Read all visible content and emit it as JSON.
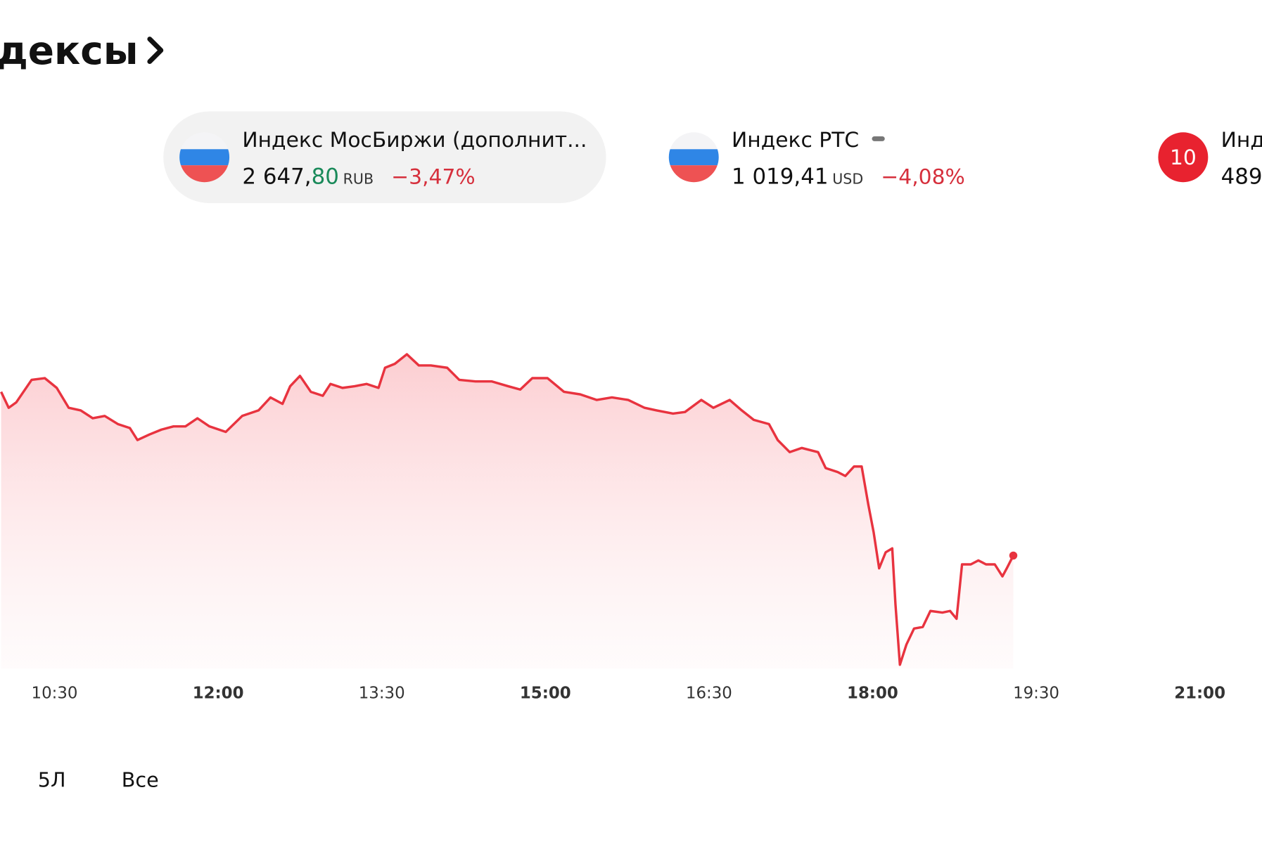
{
  "header": {
    "title": "дексы"
  },
  "cards": [
    {
      "name": "Индекс МосБиржи (дополнит...",
      "price": "2 647,",
      "price_accent": "80",
      "currency": "RUB",
      "change": "−3,47%"
    },
    {
      "name": "Индекс РТС",
      "price": "1 019,41",
      "currency": "USD",
      "change": "−4,08%"
    },
    {
      "badge": "10",
      "name": "Инд",
      "price": "489"
    }
  ],
  "chart_data": {
    "type": "line",
    "color": "#e8333f",
    "x": [
      10.01,
      10.08,
      10.15,
      10.29,
      10.41,
      10.52,
      10.63,
      10.74,
      10.85,
      10.96,
      11.08,
      11.19,
      11.26,
      11.37,
      11.48,
      11.59,
      11.7,
      11.81,
      11.92,
      12.07,
      12.22,
      12.37,
      12.48,
      12.59,
      12.66,
      12.75,
      12.85,
      12.96,
      13.03,
      13.14,
      13.25,
      13.36,
      13.47,
      13.53,
      13.62,
      13.73,
      13.84,
      13.95,
      14.1,
      14.21,
      14.36,
      14.51,
      14.66,
      14.77,
      14.88,
      15.02,
      15.17,
      15.32,
      15.47,
      15.61,
      15.76,
      15.91,
      16.02,
      16.17,
      16.28,
      16.43,
      16.54,
      16.69,
      16.8,
      16.91,
      17.05,
      17.13,
      17.24,
      17.35,
      17.5,
      17.57,
      17.68,
      17.75,
      17.83,
      17.9,
      17.96,
      18.01,
      18.06,
      18.12,
      18.18,
      18.21,
      18.25,
      18.31,
      18.38,
      18.46,
      18.53,
      18.64,
      18.71,
      18.77,
      18.82,
      18.9,
      18.97,
      19.04,
      19.12,
      19.19,
      19.23,
      19.29
    ],
    "values": [
      2718.4,
      2711.5,
      2713.9,
      2723.6,
      2724.3,
      2720.1,
      2711.5,
      2710.4,
      2707.0,
      2708.0,
      2704.5,
      2702.8,
      2697.6,
      2700.0,
      2702.1,
      2703.5,
      2703.5,
      2707.0,
      2703.5,
      2701.1,
      2708.0,
      2710.4,
      2716.0,
      2713.2,
      2720.8,
      2725.3,
      2718.4,
      2716.7,
      2721.8,
      2720.1,
      2720.8,
      2721.8,
      2720.1,
      2728.8,
      2730.5,
      2734.6,
      2729.8,
      2729.8,
      2728.8,
      2723.6,
      2722.9,
      2722.9,
      2720.8,
      2719.4,
      2724.3,
      2724.3,
      2718.4,
      2717.3,
      2714.9,
      2716.0,
      2714.9,
      2711.5,
      2710.4,
      2709.0,
      2709.7,
      2714.9,
      2711.5,
      2714.9,
      2710.4,
      2706.3,
      2704.5,
      2697.6,
      2692.4,
      2694.2,
      2692.4,
      2685.5,
      2683.8,
      2682.1,
      2686.2,
      2686.2,
      2669.9,
      2657.8,
      2642.3,
      2649.2,
      2650.9,
      2626.7,
      2600.7,
      2609.4,
      2616.3,
      2617.0,
      2623.9,
      2623.2,
      2623.9,
      2620.5,
      2644.0,
      2644.0,
      2645.7,
      2644.0,
      2644.0,
      2638.8,
      2642.3,
      2647.8
    ],
    "xlim": [
      10,
      21.57
    ],
    "ylim": [
      2599,
      2736
    ],
    "xticks": [
      {
        "value": 10.5,
        "label": "10:30"
      },
      {
        "value": 12,
        "label": "12:00"
      },
      {
        "value": 13.5,
        "label": "13:30"
      },
      {
        "value": 15,
        "label": "15:00"
      },
      {
        "value": 16.5,
        "label": "16:30"
      },
      {
        "value": 18,
        "label": "18:00"
      },
      {
        "value": 19.5,
        "label": "19:30"
      },
      {
        "value": 21,
        "label": "21:00"
      }
    ]
  },
  "ranges": [
    "5Л",
    "Все"
  ]
}
